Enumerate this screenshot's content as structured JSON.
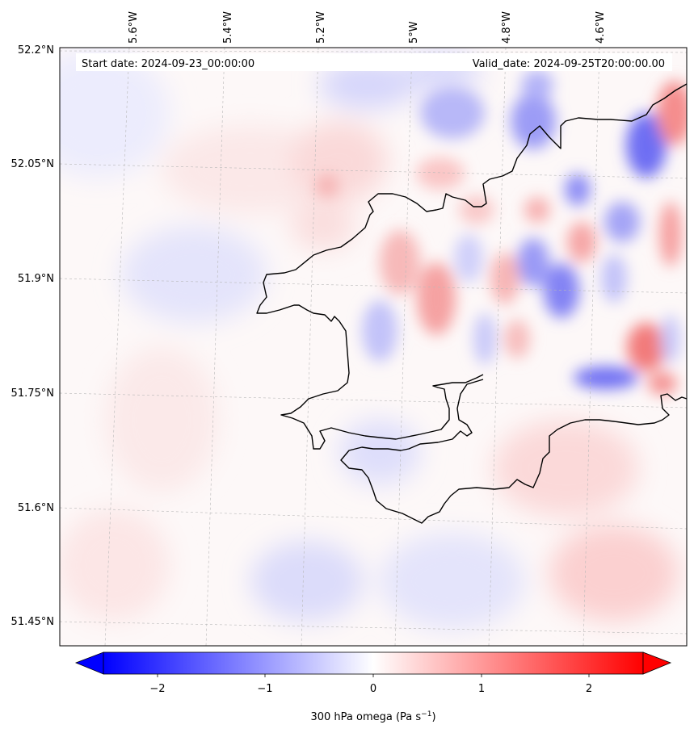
{
  "header": {
    "start_date": "Start date: 2024-09-23_00:00:00",
    "valid_date": "Valid_date: 2024-09-25T20:00:00.00"
  },
  "map": {
    "lat_ticks": [
      "52.2°N",
      "52.05°N",
      "51.9°N",
      "51.75°N",
      "51.6°N",
      "51.45°N"
    ],
    "lon_ticks": [
      "5.6°W",
      "5.4°W",
      "5.2°W",
      "5°W",
      "4.8°W",
      "4.6°W"
    ],
    "grid": true
  },
  "colorbar": {
    "ticks": [
      "−2",
      "−1",
      "0",
      "1",
      "2"
    ],
    "vmin": -2.5,
    "vmax": 2.5,
    "cmap_low": "#0000ff",
    "cmap_mid": "#ffffff",
    "cmap_high": "#ff0000",
    "extend": "both",
    "label_main": "300 hPa omega (Pa s",
    "label_sup": "−1",
    "label_end": ")"
  }
}
